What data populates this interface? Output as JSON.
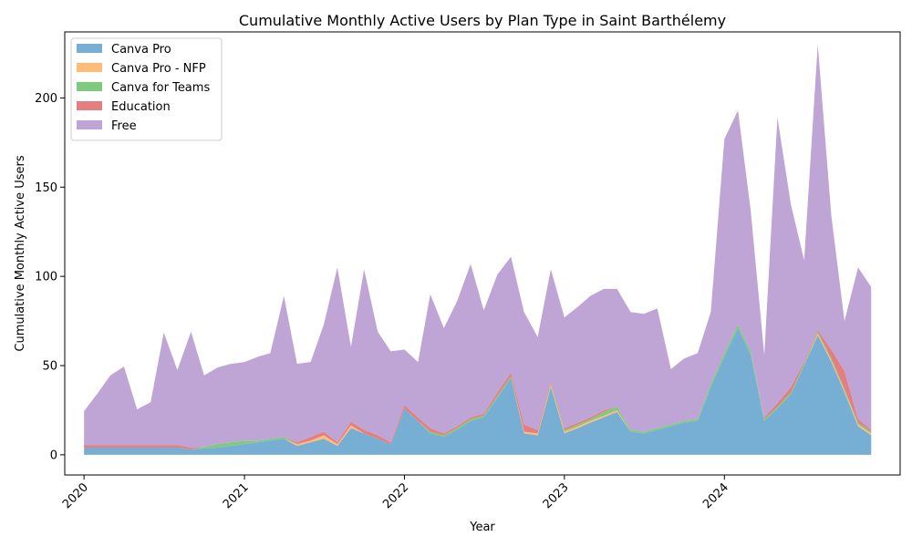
{
  "chart_data": {
    "type": "area",
    "stacked": true,
    "title": "Cumulative Monthly Active Users by Plan Type in Saint Barthélemy",
    "xlabel": "Year",
    "ylabel": "Cumulative Monthly Active Users",
    "x_ticks": [
      "2020",
      "2021",
      "2022",
      "2023",
      "2024"
    ],
    "y_ticks": [
      0,
      50,
      100,
      150,
      200
    ],
    "xlim": [
      "2019-11-18",
      "2025-02-05"
    ],
    "ylim": [
      -11.3,
      237
    ],
    "grid": false,
    "legend": "top-left",
    "colors": {
      "canva_pro": "#77aed3",
      "canva_pro_nfp": "#ffbb78",
      "canva_teams": "#7fca7f",
      "education": "#e57f7f",
      "free": "#bfa5d6"
    },
    "x": [
      "2020-01",
      "2020-02",
      "2020-03",
      "2020-04",
      "2020-05",
      "2020-06",
      "2020-07",
      "2020-08",
      "2020-09",
      "2020-10",
      "2020-11",
      "2020-12",
      "2021-01",
      "2021-02",
      "2021-03",
      "2021-04",
      "2021-05",
      "2021-06",
      "2021-07",
      "2021-08",
      "2021-09",
      "2021-10",
      "2021-11",
      "2021-12",
      "2022-01",
      "2022-02",
      "2022-03",
      "2022-04",
      "2022-05",
      "2022-06",
      "2022-07",
      "2022-08",
      "2022-09",
      "2022-10",
      "2022-11",
      "2022-12",
      "2023-01",
      "2023-02",
      "2023-03",
      "2023-04",
      "2023-05",
      "2023-06",
      "2023-07",
      "2023-08",
      "2023-09",
      "2023-10",
      "2023-11",
      "2023-12",
      "2024-01",
      "2024-02",
      "2024-03",
      "2024-04",
      "2024-05",
      "2024-06",
      "2024-07",
      "2024-08",
      "2024-09",
      "2024-10",
      "2024-11",
      "2024-12"
    ],
    "series": [
      {
        "name": "Canva Pro",
        "values": [
          4,
          4,
          4,
          4,
          4,
          4,
          4,
          4,
          3,
          3.5,
          4,
          5,
          6,
          7,
          8,
          9,
          5,
          7,
          9,
          5,
          15,
          12,
          9,
          6,
          26,
          19,
          12,
          10,
          14,
          19,
          21,
          32,
          43,
          12,
          11,
          38,
          12,
          15,
          18,
          21,
          24,
          13,
          12,
          14,
          16,
          18,
          19,
          38,
          55,
          71,
          56,
          19,
          26,
          34,
          50,
          67,
          52,
          35,
          16,
          11
        ]
      },
      {
        "name": "Canva Pro - NFP",
        "values": [
          0,
          0,
          0,
          0,
          0,
          0,
          0,
          0,
          0,
          0,
          0,
          0,
          0,
          0,
          0,
          0,
          1,
          1,
          2,
          1,
          1.5,
          0,
          0,
          0,
          0,
          0,
          0,
          0,
          0,
          0,
          0,
          0,
          0,
          1,
          1,
          1,
          1,
          1,
          1,
          1,
          1,
          0,
          0,
          0,
          0,
          0,
          0,
          0,
          0,
          0,
          0,
          0,
          0,
          0,
          0,
          1,
          1,
          1,
          1,
          1
        ]
      },
      {
        "name": "Canva for Teams",
        "values": [
          0,
          0,
          0,
          0,
          0,
          0,
          0,
          0,
          0,
          1,
          2,
          2,
          2,
          1,
          1,
          1,
          0,
          0,
          0,
          0,
          0,
          0,
          0,
          0,
          0,
          0,
          1,
          1,
          1,
          1,
          1,
          1,
          1,
          0,
          0,
          1,
          1,
          1,
          1,
          2,
          2,
          1,
          1,
          1,
          1,
          1,
          1,
          2,
          2,
          2,
          2,
          1,
          1,
          1,
          1,
          1,
          1,
          1,
          1,
          1
        ]
      },
      {
        "name": "Education",
        "values": [
          1.5,
          1.5,
          1.5,
          1.5,
          1.5,
          1.5,
          1.5,
          1.5,
          1,
          0,
          0,
          0,
          0,
          0,
          0,
          0,
          1,
          2,
          2,
          1,
          2,
          2,
          2,
          1,
          2,
          2,
          2,
          1,
          1,
          1,
          1,
          2,
          2,
          4,
          2,
          1,
          1,
          1,
          1,
          1,
          0,
          0,
          0,
          0,
          0,
          0,
          0,
          0,
          0,
          0,
          0,
          1,
          2,
          3,
          1,
          1,
          5,
          10,
          2,
          1
        ]
      },
      {
        "name": "Free",
        "values": [
          19,
          29,
          39,
          44,
          20,
          24,
          63,
          42,
          65,
          40,
          43,
          44,
          44,
          47,
          48,
          79,
          44,
          42,
          60,
          98,
          42,
          90,
          58,
          51,
          31,
          31,
          75,
          59,
          70,
          86,
          58,
          66,
          65,
          63,
          52,
          63,
          62,
          65,
          68,
          68,
          66,
          66,
          66,
          67,
          31,
          35,
          37,
          40,
          120,
          120,
          79,
          35,
          160,
          102,
          57,
          160,
          75,
          28,
          85,
          80
        ]
      }
    ]
  }
}
